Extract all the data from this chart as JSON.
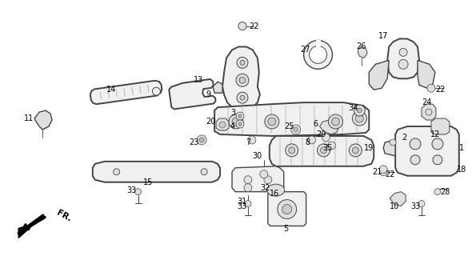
{
  "bg_color": "#ffffff",
  "line_color": "#444444",
  "label_color": "#000000",
  "label_fontsize": 7.0,
  "fr_label": "FR.",
  "fig_width": 5.95,
  "fig_height": 3.2,
  "dpi": 100
}
